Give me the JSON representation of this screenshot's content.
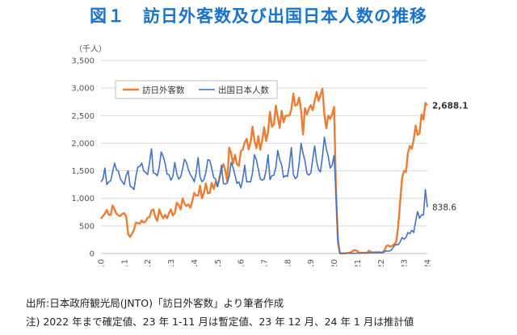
{
  "figure": {
    "title": "図１　訪日外客数及び出国日本人数の推移",
    "source_note": "出所:日本政府観光局(JNTO)「訪日外客数」より筆者作成",
    "footnote": "注) 2022 年まで確定値、23 年 1-11 月は暫定値、23 年 12 月、24 年 1 月は推計値"
  },
  "chart_data": {
    "type": "line",
    "unit_label": "（千人）",
    "ylim": [
      0,
      3500
    ],
    "yticks": [
      "0",
      "500",
      "1,000",
      "1,500",
      "2,000",
      "2,500",
      "3,000",
      "3,500"
    ],
    "ytick_values": [
      0,
      500,
      1000,
      1500,
      2000,
      2500,
      3000,
      3500
    ],
    "xlim": [
      "2010-01",
      "2024-01"
    ],
    "xticks": [
      "2010",
      "2011",
      "2012",
      "2013",
      "2014",
      "2015",
      "2016",
      "2017",
      "2018",
      "2019",
      "2020",
      "2021",
      "2022",
      "2023",
      "2024"
    ],
    "grid": "horizontal",
    "legend_position": "top-left",
    "series": [
      {
        "name": "訪日外客数",
        "color": "#ed7d31",
        "end_label": "2,688.1",
        "values": [
          630,
          680,
          720,
          790,
          700,
          700,
          870,
          800,
          720,
          690,
          680,
          720,
          730,
          670,
          350,
          300,
          360,
          430,
          560,
          550,
          540,
          600,
          560,
          580,
          650,
          660,
          780,
          800,
          660,
          590,
          800,
          710,
          640,
          700,
          640,
          730,
          800,
          690,
          730,
          920,
          880,
          800,
          1000,
          900,
          860,
          890,
          830,
          950,
          1100,
          1050,
          1050,
          1230,
          1000,
          1100,
          1270,
          1090,
          1100,
          1280,
          1170,
          1300,
          1220,
          1380,
          1530,
          1620,
          1510,
          1310,
          1920,
          1820,
          1630,
          1790,
          1620,
          1590,
          1850,
          1890,
          2010,
          2080,
          1890,
          2010,
          2300,
          2050,
          1910,
          2130,
          1880,
          2050,
          2290,
          2040,
          2200,
          2570,
          2300,
          2340,
          2680,
          2470,
          2280,
          2590,
          2380,
          2500,
          2500,
          2500,
          2610,
          2900,
          2680,
          2700,
          2830,
          2590,
          2160,
          2640,
          2520,
          2630,
          2690,
          2600,
          2760,
          2930,
          2770,
          2880,
          2990,
          2520,
          2270,
          2500,
          2440,
          2520,
          2660,
          1090,
          190,
          3,
          2,
          3,
          4,
          9,
          14,
          28,
          57,
          59,
          46,
          7,
          12,
          11,
          10,
          10,
          51,
          25,
          17,
          22,
          21,
          24,
          17,
          17,
          66,
          139,
          147,
          120,
          144,
          170,
          206,
          499,
          935,
          1370,
          1500,
          1475,
          1820,
          1950,
          1900,
          2070,
          2320,
          2150,
          2180,
          2520,
          2430,
          2730,
          2688
        ]
      },
      {
        "name": "出国日本人数",
        "color": "#4472c4",
        "end_label": "838.6",
        "values": [
          1300,
          1350,
          1550,
          1250,
          1300,
          1320,
          1480,
          1640,
          1520,
          1490,
          1350,
          1300,
          1250,
          1420,
          1500,
          1220,
          1200,
          1160,
          1400,
          1570,
          1580,
          1640,
          1500,
          1470,
          1430,
          1650,
          1900,
          1460,
          1450,
          1410,
          1570,
          1840,
          1760,
          1640,
          1440,
          1430,
          1330,
          1400,
          1650,
          1450,
          1350,
          1390,
          1530,
          1710,
          1650,
          1520,
          1430,
          1380,
          1300,
          1460,
          1740,
          1390,
          1300,
          1340,
          1470,
          1700,
          1690,
          1550,
          1380,
          1350,
          1210,
          1350,
          1600,
          1270,
          1260,
          1280,
          1400,
          1650,
          1560,
          1420,
          1270,
          1300,
          1190,
          1350,
          1600,
          1300,
          1300,
          1300,
          1460,
          1790,
          1700,
          1530,
          1350,
          1330,
          1350,
          1510,
          1790,
          1340,
          1410,
          1420,
          1560,
          1870,
          1700,
          1610,
          1380,
          1410,
          1400,
          1610,
          1920,
          1440,
          1360,
          1390,
          1640,
          2000,
          1820,
          1680,
          1460,
          1420,
          1460,
          1710,
          1950,
          1670,
          1520,
          1480,
          1760,
          2110,
          1900,
          1760,
          1550,
          1600,
          1780,
          1080,
          270,
          4,
          3,
          2,
          4,
          6,
          5,
          3,
          3,
          5,
          6,
          7,
          9,
          11,
          9,
          10,
          10,
          15,
          13,
          14,
          13,
          10,
          14,
          17,
          30,
          50,
          42,
          50,
          86,
          140,
          164,
          159,
          210,
          290,
          260,
          290,
          380,
          360,
          420,
          380,
          590,
          760,
          640,
          700,
          700,
          1160,
          839
        ]
      }
    ]
  }
}
